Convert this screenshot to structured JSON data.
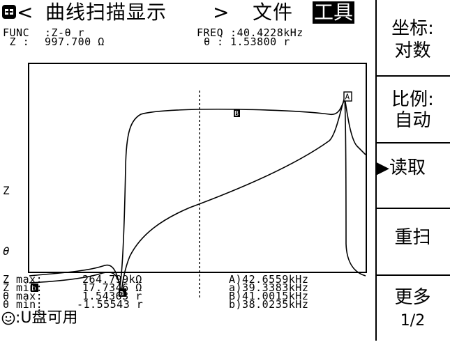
{
  "header": {
    "prev_arrow": "<",
    "title": "曲线扫描显示",
    "next_arrow": ">",
    "menu_file": "文件",
    "menu_tools": "工具"
  },
  "info": {
    "func_label": "FUNC",
    "func_value": ":Z-θ r",
    "z_label": " Z :",
    "z_value": "997.700 Ω",
    "freq_label": "FREQ",
    "freq_value": ":40.4228kHz",
    "theta_label": "θ :",
    "theta_value": "1.53800 r"
  },
  "plot": {
    "z_axis_label": "Z",
    "theta_axis_label": "θ",
    "marker_A": "A",
    "marker_B": "B",
    "marker_a": "a",
    "marker_b": "b"
  },
  "stats": {
    "z_max_label": "Z max:",
    "z_max_value": "264.799kΩ",
    "z_min_label": "Z min:",
    "z_min_value": "17.7346 Ω",
    "t_max_label": "θ max:",
    "t_max_value": "1.54363 r",
    "t_min_label": "θ min:",
    "t_min_value": "-1.55543 r",
    "A": "A)42.6559kHz",
    "a": "a)39.3383kHz",
    "B": "B)41.0015kHz",
    "b": "b)38.0235kHz"
  },
  "status": {
    "usb_text": ":U盘可用"
  },
  "softkeys": {
    "coord_line1": "坐标:",
    "coord_line2": "对数",
    "scale_line1": "比例:",
    "scale_line2": "自动",
    "read": "▶读取",
    "rescan": "重扫",
    "more_line1": "更多",
    "more_line2": "1/2"
  },
  "colors": {
    "background": "#ffffff",
    "foreground": "#000000",
    "highlight_bg": "#000000",
    "highlight_fg": "#ffffff"
  }
}
